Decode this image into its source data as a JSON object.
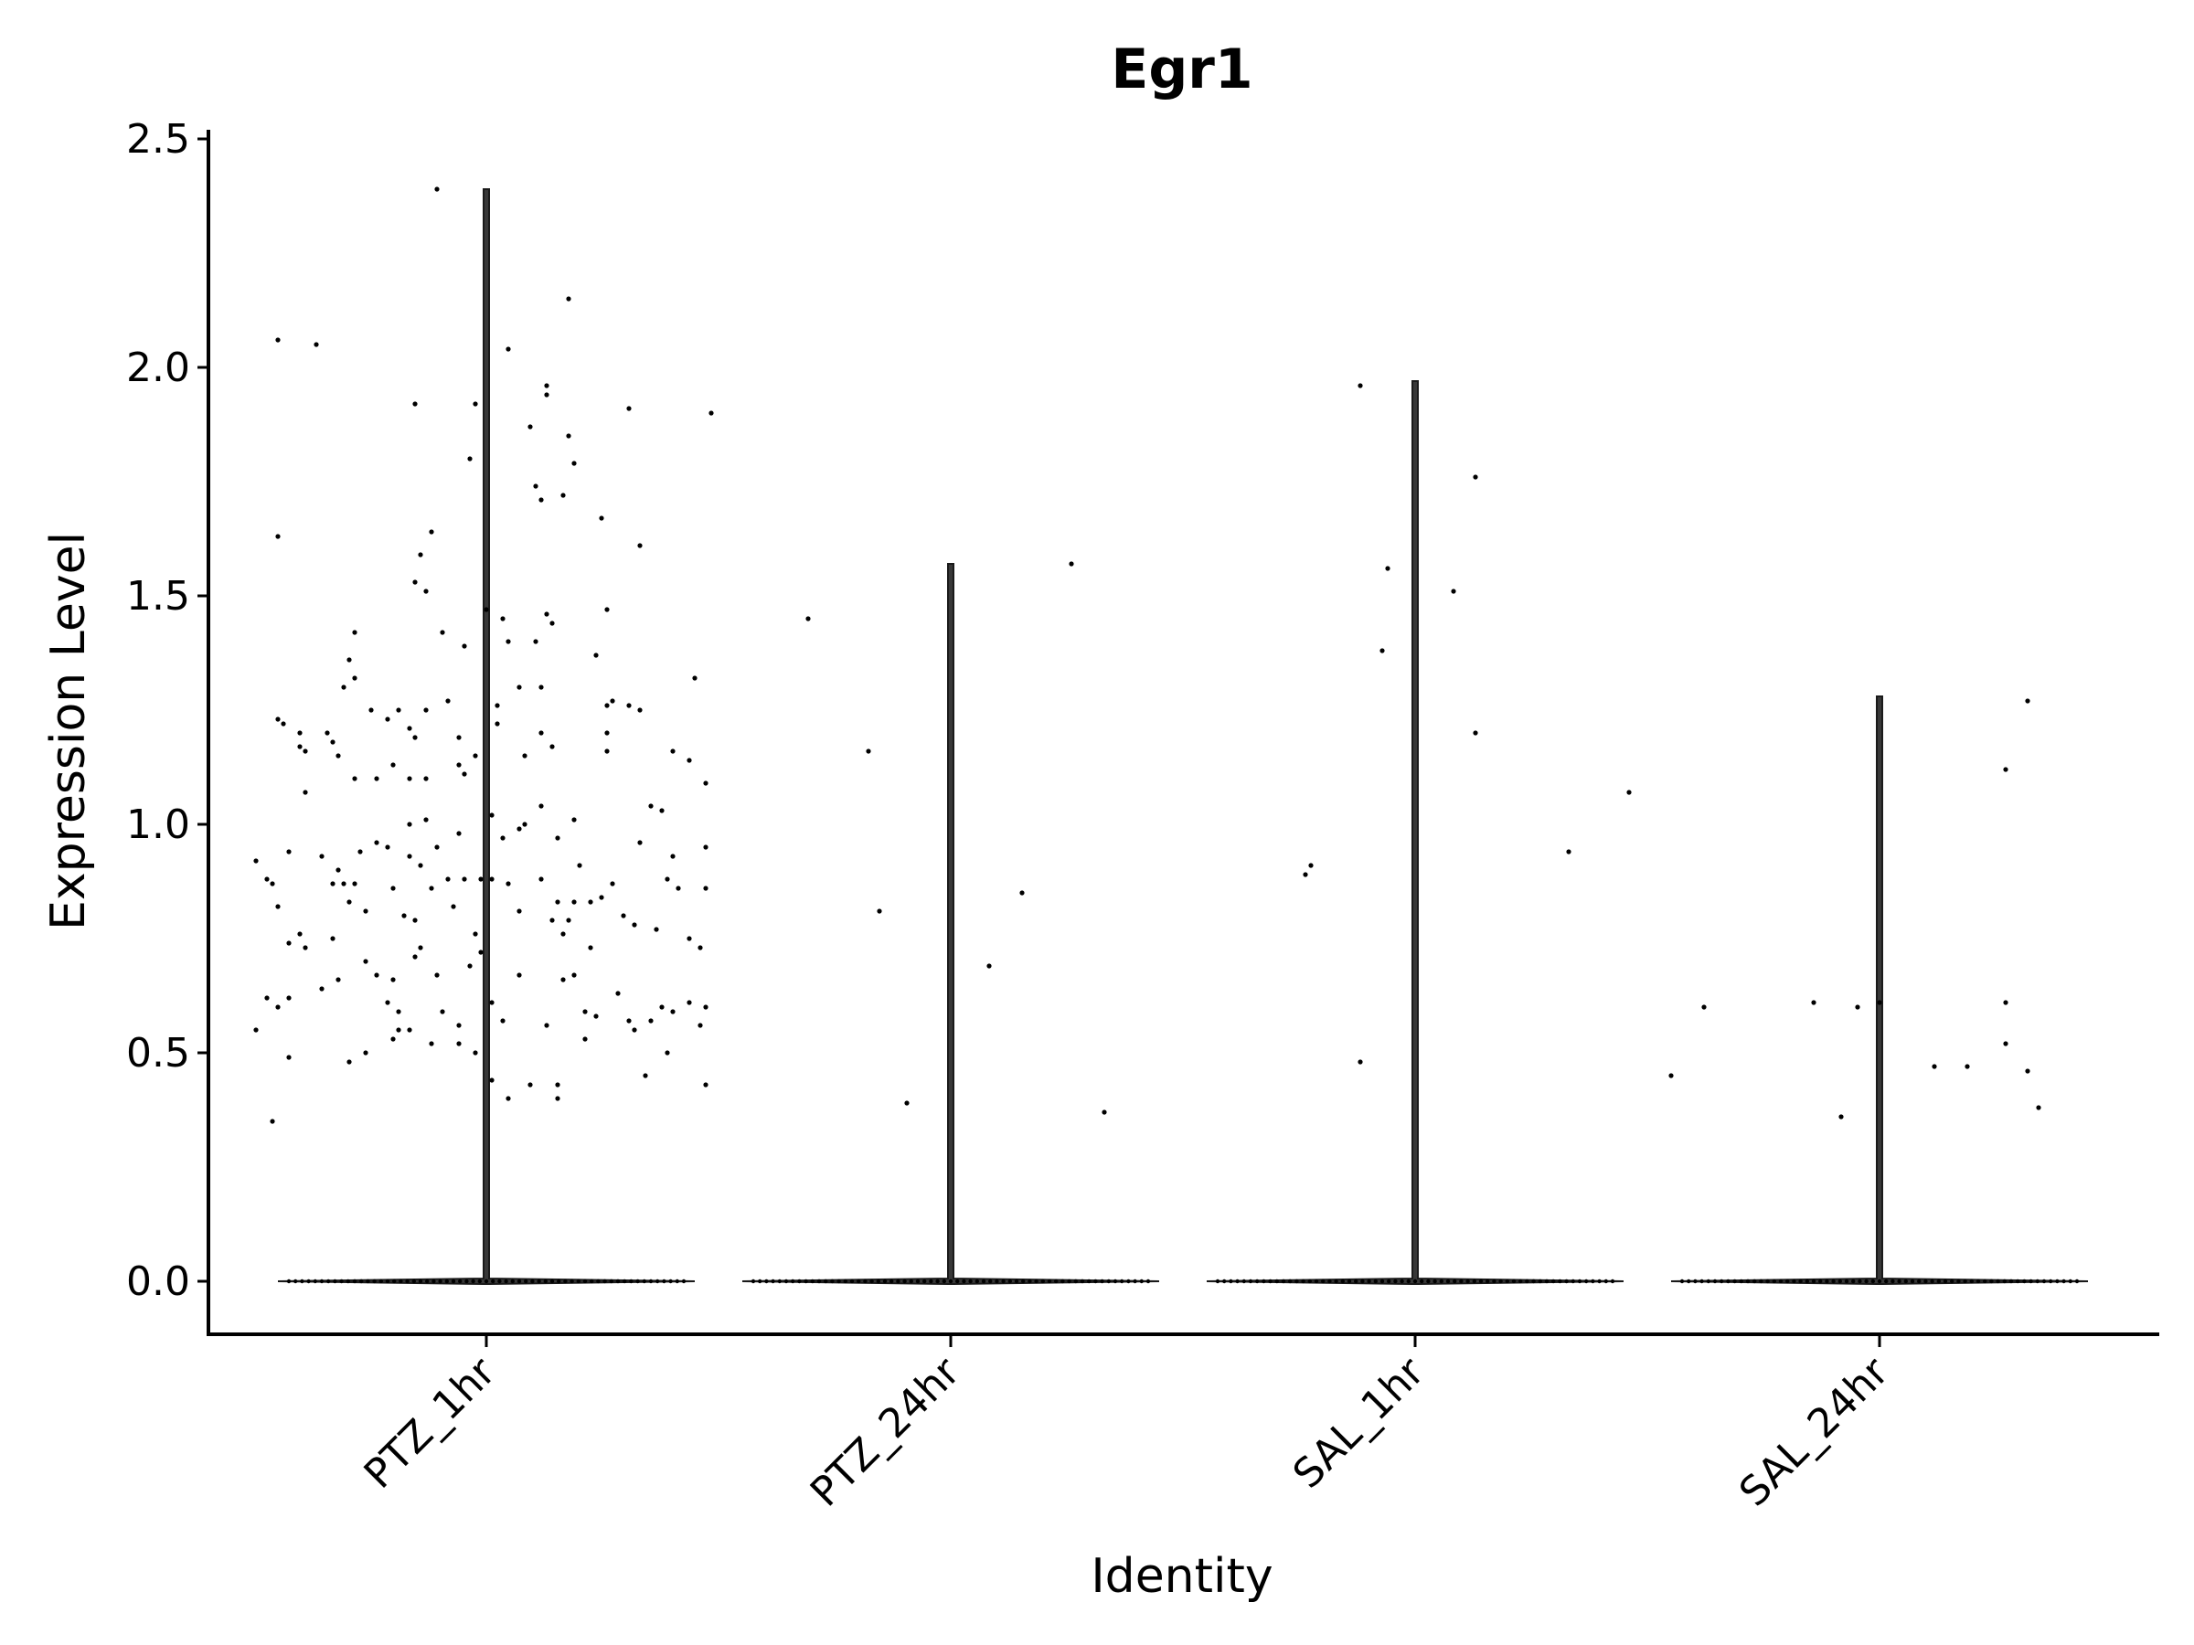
{
  "chart_data": {
    "type": "violin",
    "title": "Egr1",
    "xlabel": "Identity",
    "ylabel": "Expression Level",
    "ylim": [
      -0.12,
      2.52
    ],
    "yticks": [
      "0.0",
      "0.5",
      "1.0",
      "1.5",
      "2.0",
      "2.5"
    ],
    "categories": [
      "PTZ_1hr",
      "PTZ_24hr",
      "SAL_1hr",
      "SAL_24hr"
    ],
    "grid": false,
    "legend": "none",
    "colors": {
      "points": "#000000",
      "violin": "#1a1a1a",
      "background": "#ffffff"
    },
    "groups": [
      {
        "category": "PTZ_1hr",
        "max": 2.39,
        "points": [
          [
            -0.38,
            2.06
          ],
          [
            -0.31,
            2.05
          ],
          [
            -0.09,
            2.39
          ],
          [
            0.15,
            2.15
          ],
          [
            0.04,
            2.04
          ],
          [
            0.11,
            1.96
          ],
          [
            0.11,
            1.94
          ],
          [
            0.26,
            1.91
          ],
          [
            0.41,
            1.9
          ],
          [
            -0.13,
            1.92
          ],
          [
            -0.02,
            1.92
          ],
          [
            0.08,
            1.87
          ],
          [
            0.15,
            1.85
          ],
          [
            0.16,
            1.79
          ],
          [
            -0.03,
            1.8
          ],
          [
            0.09,
            1.74
          ],
          [
            0.1,
            1.71
          ],
          [
            0.14,
            1.72
          ],
          [
            0.21,
            1.67
          ],
          [
            -0.38,
            1.63
          ],
          [
            -0.1,
            1.64
          ],
          [
            -0.12,
            1.59
          ],
          [
            -0.13,
            1.53
          ],
          [
            -0.11,
            1.51
          ],
          [
            0.28,
            1.61
          ],
          [
            0.0,
            1.47
          ],
          [
            0.11,
            1.46
          ],
          [
            0.12,
            1.44
          ],
          [
            0.22,
            1.47
          ],
          [
            -0.08,
            1.42
          ],
          [
            0.04,
            1.4
          ],
          [
            0.09,
            1.4
          ],
          [
            0.03,
            1.45
          ],
          [
            -0.24,
            1.42
          ],
          [
            -0.25,
            1.36
          ],
          [
            -0.24,
            1.32
          ],
          [
            0.2,
            1.37
          ],
          [
            -0.04,
            1.39
          ],
          [
            -0.38,
            1.23
          ],
          [
            -0.37,
            1.22
          ],
          [
            -0.34,
            1.2
          ],
          [
            -0.34,
            1.17
          ],
          [
            -0.33,
            1.16
          ],
          [
            -0.29,
            1.2
          ],
          [
            -0.28,
            1.18
          ],
          [
            -0.27,
            1.15
          ],
          [
            -0.21,
            1.25
          ],
          [
            -0.18,
            1.23
          ],
          [
            -0.16,
            1.25
          ],
          [
            -0.14,
            1.21
          ],
          [
            -0.13,
            1.19
          ],
          [
            -0.11,
            1.25
          ],
          [
            -0.2,
            1.1
          ],
          [
            -0.17,
            1.13
          ],
          [
            -0.14,
            1.1
          ],
          [
            -0.07,
            1.27
          ],
          [
            -0.05,
            1.19
          ],
          [
            0.02,
            1.26
          ],
          [
            0.02,
            1.22
          ],
          [
            0.06,
            1.3
          ],
          [
            0.1,
            1.3
          ],
          [
            0.07,
            1.15
          ],
          [
            0.1,
            1.2
          ],
          [
            0.12,
            1.17
          ],
          [
            0.22,
            1.26
          ],
          [
            0.23,
            1.27
          ],
          [
            0.26,
            1.26
          ],
          [
            0.28,
            1.25
          ],
          [
            0.34,
            1.16
          ],
          [
            0.37,
            1.14
          ],
          [
            0.38,
            1.32
          ],
          [
            0.22,
            1.2
          ],
          [
            0.22,
            1.16
          ],
          [
            0.4,
            1.09
          ],
          [
            -0.02,
            1.15
          ],
          [
            -0.26,
            1.3
          ],
          [
            -0.33,
            1.07
          ],
          [
            -0.24,
            1.1
          ],
          [
            -0.11,
            1.1
          ],
          [
            -0.04,
            1.11
          ],
          [
            -0.05,
            1.13
          ],
          [
            -0.14,
            1.0
          ],
          [
            -0.11,
            1.01
          ],
          [
            0.01,
            1.02
          ],
          [
            0.07,
            1.0
          ],
          [
            0.1,
            1.04
          ],
          [
            0.16,
            1.01
          ],
          [
            0.3,
            1.04
          ],
          [
            0.32,
            1.03
          ],
          [
            -0.36,
            0.94
          ],
          [
            -0.3,
            0.93
          ],
          [
            -0.27,
            0.9
          ],
          [
            -0.23,
            0.94
          ],
          [
            -0.2,
            0.96
          ],
          [
            -0.18,
            0.95
          ],
          [
            -0.14,
            0.93
          ],
          [
            -0.12,
            0.91
          ],
          [
            -0.09,
            0.95
          ],
          [
            -0.05,
            0.98
          ],
          [
            0.03,
            0.97
          ],
          [
            0.06,
            0.99
          ],
          [
            0.13,
            0.97
          ],
          [
            0.17,
            0.91
          ],
          [
            0.28,
            0.96
          ],
          [
            0.34,
            0.93
          ],
          [
            0.4,
            0.95
          ],
          [
            -0.42,
            0.92
          ],
          [
            -0.4,
            0.88
          ],
          [
            -0.39,
            0.87
          ],
          [
            -0.28,
            0.87
          ],
          [
            -0.26,
            0.87
          ],
          [
            -0.24,
            0.87
          ],
          [
            -0.17,
            0.86
          ],
          [
            -0.1,
            0.86
          ],
          [
            -0.07,
            0.88
          ],
          [
            -0.04,
            0.88
          ],
          [
            -0.01,
            0.88
          ],
          [
            0.01,
            0.88
          ],
          [
            0.04,
            0.87
          ],
          [
            0.1,
            0.88
          ],
          [
            0.13,
            0.83
          ],
          [
            0.16,
            0.83
          ],
          [
            0.19,
            0.83
          ],
          [
            0.21,
            0.84
          ],
          [
            0.23,
            0.87
          ],
          [
            0.25,
            0.8
          ],
          [
            0.33,
            0.88
          ],
          [
            0.35,
            0.86
          ],
          [
            0.4,
            0.86
          ],
          [
            -0.38,
            0.82
          ],
          [
            -0.34,
            0.76
          ],
          [
            -0.36,
            0.74
          ],
          [
            -0.33,
            0.73
          ],
          [
            -0.28,
            0.75
          ],
          [
            -0.25,
            0.83
          ],
          [
            -0.22,
            0.81
          ],
          [
            -0.15,
            0.8
          ],
          [
            -0.13,
            0.79
          ],
          [
            -0.12,
            0.73
          ],
          [
            -0.06,
            0.82
          ],
          [
            -0.02,
            0.76
          ],
          [
            -0.01,
            0.72
          ],
          [
            0.06,
            0.81
          ],
          [
            0.12,
            0.79
          ],
          [
            0.14,
            0.76
          ],
          [
            0.15,
            0.79
          ],
          [
            0.19,
            0.73
          ],
          [
            0.27,
            0.78
          ],
          [
            0.31,
            0.77
          ],
          [
            0.37,
            0.75
          ],
          [
            0.39,
            0.73
          ],
          [
            -0.4,
            0.62
          ],
          [
            -0.38,
            0.6
          ],
          [
            -0.36,
            0.62
          ],
          [
            -0.3,
            0.64
          ],
          [
            -0.27,
            0.66
          ],
          [
            -0.22,
            0.7
          ],
          [
            -0.2,
            0.67
          ],
          [
            -0.18,
            0.61
          ],
          [
            -0.17,
            0.66
          ],
          [
            -0.16,
            0.59
          ],
          [
            -0.13,
            0.71
          ],
          [
            -0.09,
            0.67
          ],
          [
            -0.08,
            0.59
          ],
          [
            -0.05,
            0.56
          ],
          [
            -0.03,
            0.69
          ],
          [
            0.01,
            0.61
          ],
          [
            0.03,
            0.57
          ],
          [
            0.06,
            0.67
          ],
          [
            0.11,
            0.56
          ],
          [
            0.14,
            0.66
          ],
          [
            0.16,
            0.67
          ],
          [
            0.18,
            0.59
          ],
          [
            0.2,
            0.58
          ],
          [
            0.24,
            0.63
          ],
          [
            0.26,
            0.57
          ],
          [
            0.3,
            0.57
          ],
          [
            0.32,
            0.6
          ],
          [
            0.34,
            0.59
          ],
          [
            0.37,
            0.61
          ],
          [
            0.4,
            0.6
          ],
          [
            -0.42,
            0.55
          ],
          [
            -0.36,
            0.49
          ],
          [
            -0.25,
            0.48
          ],
          [
            -0.22,
            0.5
          ],
          [
            -0.17,
            0.53
          ],
          [
            -0.16,
            0.55
          ],
          [
            -0.14,
            0.55
          ],
          [
            -0.1,
            0.52
          ],
          [
            -0.05,
            0.52
          ],
          [
            -0.02,
            0.5
          ],
          [
            0.01,
            0.44
          ],
          [
            0.04,
            0.4
          ],
          [
            0.08,
            0.43
          ],
          [
            0.13,
            0.4
          ],
          [
            0.13,
            0.43
          ],
          [
            0.18,
            0.53
          ],
          [
            0.27,
            0.55
          ],
          [
            0.29,
            0.45
          ],
          [
            0.33,
            0.5
          ],
          [
            0.39,
            0.56
          ],
          [
            0.4,
            0.43
          ],
          [
            -0.39,
            0.35
          ]
        ]
      },
      {
        "category": "PTZ_24hr",
        "max": 1.57,
        "points": [
          [
            -0.26,
            1.45
          ],
          [
            0.22,
            1.57
          ],
          [
            -0.15,
            1.16
          ],
          [
            -0.13,
            0.81
          ],
          [
            0.13,
            0.85
          ],
          [
            0.07,
            0.69
          ],
          [
            -0.08,
            0.39
          ],
          [
            0.28,
            0.37
          ]
        ]
      },
      {
        "category": "SAL_1hr",
        "max": 1.97,
        "points": [
          [
            -0.1,
            1.96
          ],
          [
            -0.05,
            1.56
          ],
          [
            0.11,
            1.76
          ],
          [
            -0.06,
            1.38
          ],
          [
            0.07,
            1.51
          ],
          [
            0.11,
            1.2
          ],
          [
            0.39,
            1.07
          ],
          [
            0.28,
            0.94
          ],
          [
            -0.2,
            0.89
          ],
          [
            -0.19,
            0.91
          ],
          [
            -0.1,
            0.48
          ]
        ]
      },
      {
        "category": "SAL_24hr",
        "max": 1.28,
        "points": [
          [
            0.27,
            1.27
          ],
          [
            0.23,
            1.12
          ],
          [
            -0.32,
            0.6
          ],
          [
            -0.12,
            0.61
          ],
          [
            -0.04,
            0.6
          ],
          [
            0.0,
            0.61
          ],
          [
            0.23,
            0.61
          ],
          [
            0.23,
            0.52
          ],
          [
            0.1,
            0.47
          ],
          [
            0.16,
            0.47
          ],
          [
            -0.38,
            0.45
          ],
          [
            0.27,
            0.46
          ],
          [
            -0.07,
            0.36
          ],
          [
            0.29,
            0.38
          ]
        ]
      }
    ]
  }
}
